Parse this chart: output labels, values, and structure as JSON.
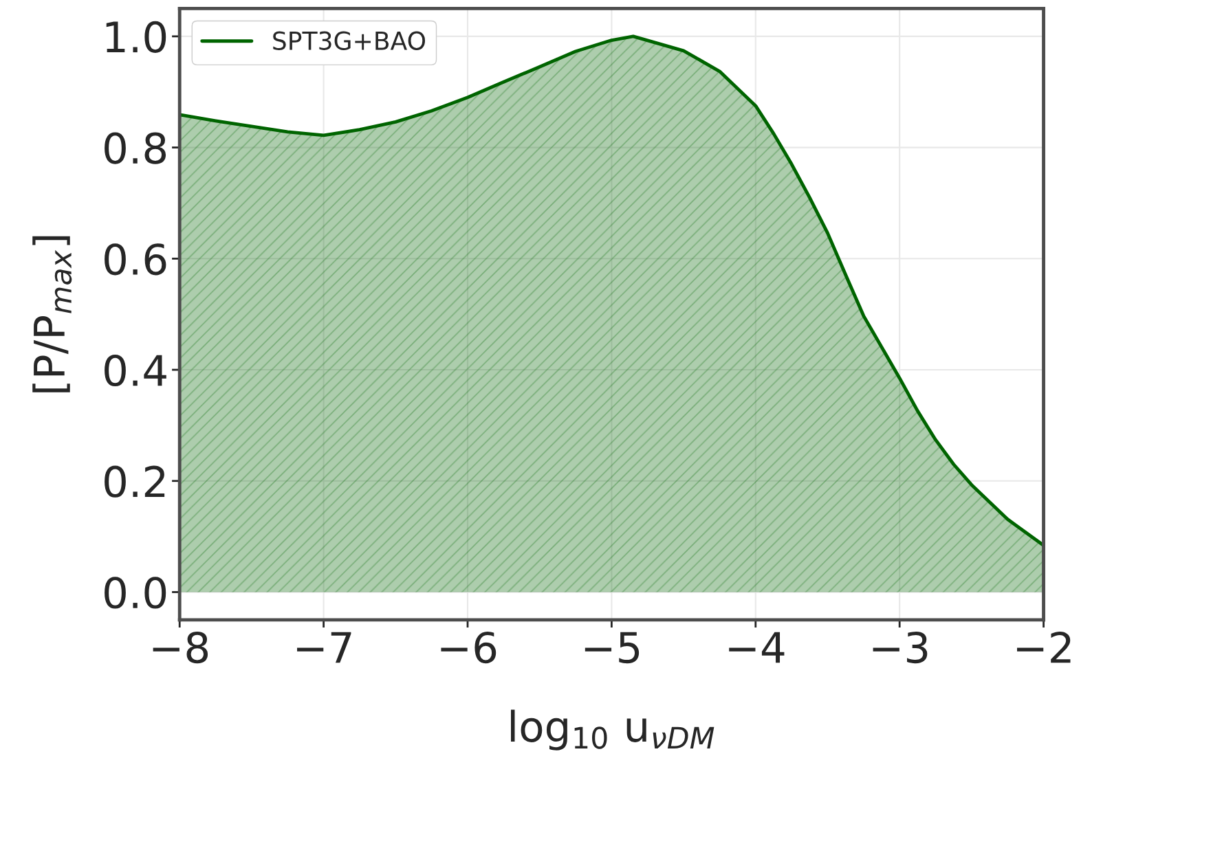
{
  "chart_data": {
    "type": "area",
    "xlabel": "log$_{10}$ u$_{νDM}$",
    "ylabel": "[P/P$_{max}$]",
    "xlim": [
      -8,
      -2
    ],
    "ylim": [
      -0.05,
      1.05
    ],
    "xticks": [
      {
        "value": -8,
        "label": "−8"
      },
      {
        "value": -7,
        "label": "−7"
      },
      {
        "value": -6,
        "label": "−6"
      },
      {
        "value": -5,
        "label": "−5"
      },
      {
        "value": -4,
        "label": "−4"
      },
      {
        "value": -3,
        "label": "−3"
      },
      {
        "value": -2,
        "label": "−2"
      }
    ],
    "yticks": [
      {
        "value": 0,
        "label": "0.0"
      },
      0.2,
      0.4,
      0.6,
      0.8,
      {
        "value": 1,
        "label": "1.0"
      }
    ],
    "grid": true,
    "legend": "top left",
    "series": [
      {
        "name": "SPT3G+BAO",
        "color": "#006400",
        "x": [
          -8,
          -7.75,
          -7.5,
          -7.25,
          -7.0,
          -6.75,
          -6.5,
          -6.25,
          -6.0,
          -5.75,
          -5.5,
          -5.25,
          -5.0,
          -4.85,
          -4.5,
          -4.25,
          -4.0,
          -3.875,
          -3.75,
          -3.625,
          -3.5,
          -3.375,
          -3.25,
          -3.125,
          -3.0,
          -2.875,
          -2.75,
          -2.625,
          -2.5,
          -2.25,
          -2.0
        ],
        "values": [
          0.859,
          0.848,
          0.838,
          0.828,
          0.822,
          0.832,
          0.846,
          0.866,
          0.89,
          0.918,
          0.945,
          0.973,
          0.993,
          1.0,
          0.974,
          0.937,
          0.875,
          0.825,
          0.77,
          0.71,
          0.646,
          0.571,
          0.497,
          0.441,
          0.385,
          0.326,
          0.274,
          0.23,
          0.193,
          0.131,
          0.084
        ]
      }
    ]
  }
}
